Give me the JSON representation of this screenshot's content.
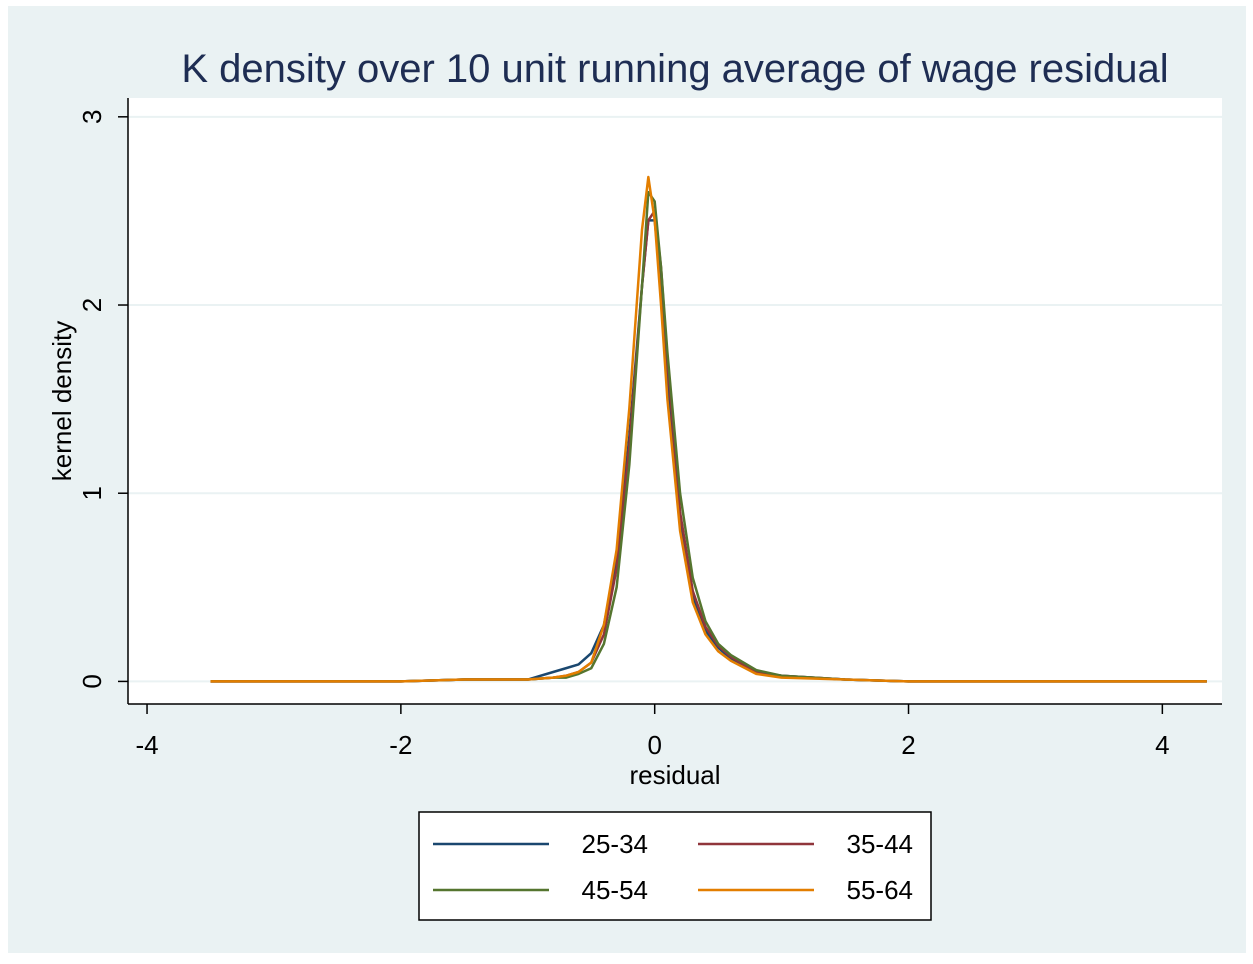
{
  "chart_data": {
    "type": "line",
    "title": "K density over 10 unit running average of wage residual",
    "x_label": "residual",
    "y_label": "kernel density",
    "x": [
      -3.5,
      -3,
      -2.5,
      -2,
      -1.5,
      -1,
      -0.8,
      -0.7,
      -0.6,
      -0.5,
      -0.4,
      -0.3,
      -0.2,
      -0.1,
      -0.05,
      0,
      0.05,
      0.1,
      0.2,
      0.3,
      0.4,
      0.5,
      0.6,
      0.8,
      1,
      1.5,
      2,
      3,
      4.35
    ],
    "series": [
      {
        "name": "25-34",
        "color": "#1a476f",
        "values": [
          0,
          0,
          0,
          0,
          0.01,
          0.01,
          0.05,
          0.07,
          0.09,
          0.15,
          0.3,
          0.65,
          1.3,
          2.1,
          2.45,
          2.45,
          2.1,
          1.6,
          0.85,
          0.45,
          0.27,
          0.18,
          0.12,
          0.05,
          0.03,
          0.01,
          0,
          0,
          0
        ]
      },
      {
        "name": "35-44",
        "color": "#90353b",
        "values": [
          0,
          0,
          0,
          0,
          0.01,
          0.01,
          0.02,
          0.03,
          0.05,
          0.1,
          0.25,
          0.6,
          1.25,
          2.1,
          2.45,
          2.5,
          2.2,
          1.7,
          0.9,
          0.48,
          0.29,
          0.19,
          0.13,
          0.05,
          0.03,
          0.01,
          0,
          0,
          0
        ]
      },
      {
        "name": "45-54",
        "color": "#55752f",
        "values": [
          0,
          0,
          0,
          0,
          0.01,
          0.01,
          0.02,
          0.02,
          0.04,
          0.07,
          0.2,
          0.5,
          1.15,
          2.1,
          2.6,
          2.55,
          2.2,
          1.75,
          1.0,
          0.55,
          0.32,
          0.2,
          0.14,
          0.06,
          0.03,
          0.01,
          0,
          0,
          0
        ]
      },
      {
        "name": "55-64",
        "color": "#e37e00",
        "values": [
          0,
          0,
          0,
          0,
          0.01,
          0.01,
          0.02,
          0.03,
          0.05,
          0.1,
          0.3,
          0.7,
          1.45,
          2.4,
          2.68,
          2.45,
          2.0,
          1.5,
          0.8,
          0.42,
          0.25,
          0.16,
          0.11,
          0.04,
          0.02,
          0.01,
          0,
          0,
          0
        ]
      }
    ],
    "xlim": [
      -4.15,
      4.47
    ],
    "ylim": [
      -0.12,
      3.1
    ],
    "xticks": [
      -4,
      -2,
      0,
      2,
      4
    ],
    "yticks": [
      0,
      1,
      2,
      3
    ],
    "grid": true
  }
}
